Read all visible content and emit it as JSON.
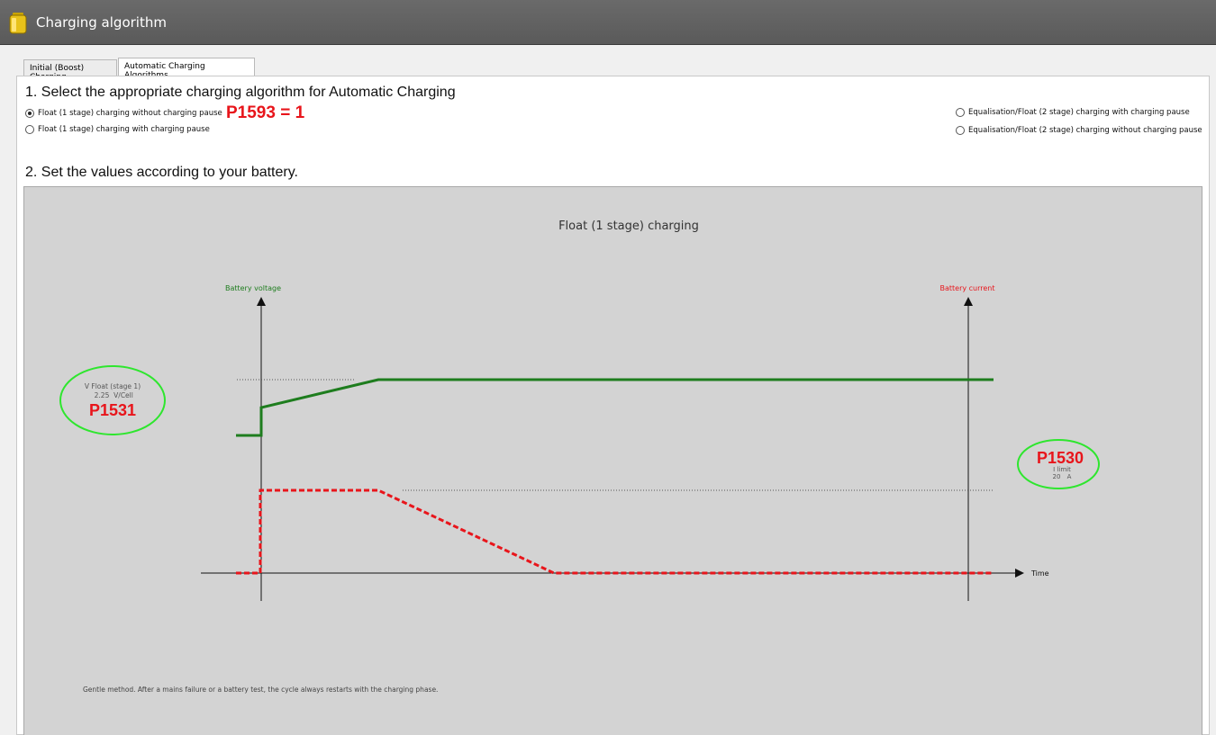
{
  "window": {
    "title": "Charging algorithm",
    "icon": "battery-icon"
  },
  "tabs": [
    {
      "label": "Initial (Boost) Charging",
      "active": false
    },
    {
      "label": "Automatic Charging Algorithms",
      "active": true
    }
  ],
  "section1": {
    "heading": "1. Select the appropriate charging algorithm for Automatic Charging",
    "options": [
      {
        "label": "Float (1 stage) charging without charging pause",
        "checked": true
      },
      {
        "label": "Float (1 stage) charging with charging pause",
        "checked": false
      },
      {
        "label": "Equalisation/Float (2 stage) charging with charging pause",
        "checked": false
      },
      {
        "label": "Equalisation/Float (2 stage) charging without charging pause",
        "checked": false
      }
    ],
    "annotation": "P1593 = 1"
  },
  "section2": {
    "heading": "2. Set the values according to your battery."
  },
  "diagram": {
    "title": "Float (1 stage) charging",
    "voltage_axis_label": "Battery voltage",
    "current_axis_label": "Battery current",
    "time_axis_label": "Time",
    "v_float": {
      "label": "V Float (stage 1)",
      "value": "2.25",
      "unit": "V/Cell",
      "param": "P1531"
    },
    "i_limit": {
      "param": "P1530",
      "label": "I limit",
      "value": "20",
      "unit": "A"
    },
    "description": "Gentle method. After a mains failure or a battery test, the cycle always restarts with the charging phase.",
    "colors": {
      "voltage": "#1e7d1e",
      "current": "#e8151b",
      "highlight": "#2ee62e"
    }
  }
}
